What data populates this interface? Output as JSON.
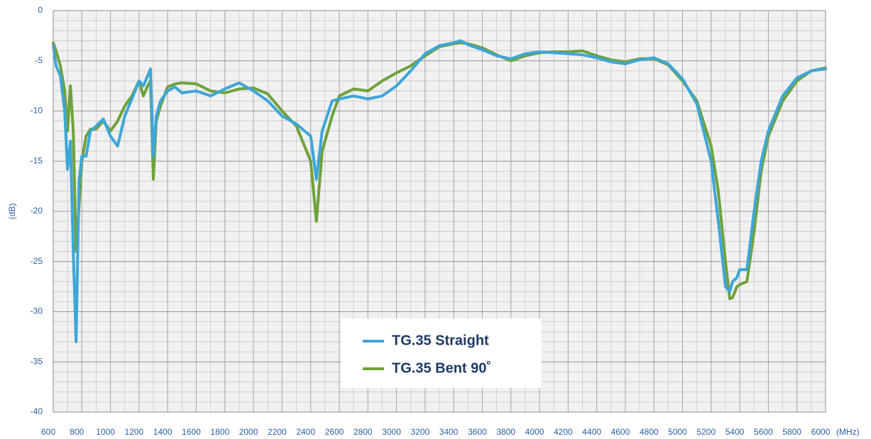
{
  "chart_data": {
    "type": "line",
    "x_label": "(MHz)",
    "y_label": "(dB)",
    "x": [
      600,
      620,
      650,
      680,
      700,
      720,
      740,
      760,
      780,
      800,
      830,
      860,
      900,
      950,
      1000,
      1050,
      1100,
      1150,
      1200,
      1230,
      1260,
      1280,
      1300,
      1320,
      1350,
      1400,
      1450,
      1500,
      1600,
      1700,
      1800,
      1900,
      2000,
      2100,
      2200,
      2300,
      2400,
      2440,
      2480,
      2550,
      2600,
      2700,
      2800,
      2900,
      3000,
      3100,
      3200,
      3300,
      3400,
      3450,
      3500,
      3600,
      3700,
      3800,
      3900,
      4000,
      4100,
      4200,
      4300,
      4400,
      4500,
      4600,
      4700,
      4800,
      4900,
      5000,
      5100,
      5200,
      5250,
      5300,
      5330,
      5350,
      5380,
      5400,
      5450,
      5500,
      5550,
      5600,
      5700,
      5800,
      5900,
      6000
    ],
    "series": [
      {
        "name": "TG.35 Straight",
        "color": "#3ea6d8",
        "values": [
          -3.5,
          -5.5,
          -6.5,
          -10,
          -15.8,
          -13,
          -24,
          -33,
          -17,
          -14.5,
          -14.5,
          -12,
          -11.5,
          -10.8,
          -12.5,
          -13.5,
          -10.5,
          -8.8,
          -7,
          -7.5,
          -6.5,
          -5.8,
          -14.5,
          -10.5,
          -9,
          -8,
          -7.6,
          -8.2,
          -8,
          -8.5,
          -7.8,
          -7.2,
          -8,
          -9,
          -10.5,
          -11.3,
          -12.5,
          -16.8,
          -12,
          -9,
          -8.8,
          -8.5,
          -8.8,
          -8.5,
          -7.5,
          -6,
          -4.3,
          -3.5,
          -3.2,
          -3,
          -3.4,
          -3.9,
          -4.5,
          -4.8,
          -4.3,
          -4.1,
          -4.2,
          -4.3,
          -4.4,
          -4.7,
          -5.1,
          -5.3,
          -4.9,
          -4.7,
          -5.3,
          -6.8,
          -9.3,
          -15,
          -21,
          -27.5,
          -28,
          -27,
          -26.6,
          -25.8,
          -25.8,
          -20,
          -15,
          -12,
          -8.5,
          -6.7,
          -6,
          -5.8
        ]
      },
      {
        "name": "TG.35 Bent 90˚",
        "color": "#6ea23a",
        "values": [
          -3.2,
          -4,
          -5.5,
          -8,
          -12,
          -7.5,
          -12,
          -24,
          -19.5,
          -15,
          -12.5,
          -11.8,
          -11.8,
          -11,
          -12,
          -11,
          -9.5,
          -8.5,
          -7,
          -8.5,
          -7.5,
          -7,
          -16.8,
          -11,
          -9.5,
          -7.6,
          -7.3,
          -7.2,
          -7.3,
          -8,
          -8.2,
          -7.8,
          -7.7,
          -8.3,
          -10,
          -11.5,
          -15,
          -21,
          -14,
          -10.5,
          -8.5,
          -7.8,
          -8,
          -7,
          -6.2,
          -5.5,
          -4.5,
          -3.6,
          -3.3,
          -3.2,
          -3.3,
          -3.7,
          -4.4,
          -5,
          -4.5,
          -4.2,
          -4.1,
          -4.1,
          -4,
          -4.5,
          -4.9,
          -5.1,
          -4.8,
          -4.8,
          -5.4,
          -7,
          -9,
          -13.5,
          -18,
          -25,
          -28.7,
          -28.6,
          -27.5,
          -27.3,
          -27,
          -22,
          -16,
          -12.5,
          -9,
          -7,
          -6,
          -5.7
        ]
      }
    ],
    "xlim": [
      600,
      6000
    ],
    "xticks": [
      600,
      800,
      1000,
      1200,
      1400,
      1600,
      1800,
      2000,
      2200,
      2400,
      2600,
      2800,
      3000,
      3200,
      3400,
      3600,
      3800,
      4000,
      4200,
      4400,
      4600,
      4800,
      5000,
      5200,
      5400,
      5600,
      5800,
      6000
    ],
    "ylim": [
      -40,
      0
    ],
    "yticks": [
      0,
      -5,
      -10,
      -15,
      -20,
      -25,
      -30,
      -35,
      -40
    ],
    "grid": true,
    "minor_grid": {
      "x": 100,
      "y": 1
    },
    "legend": "bottom-center"
  }
}
